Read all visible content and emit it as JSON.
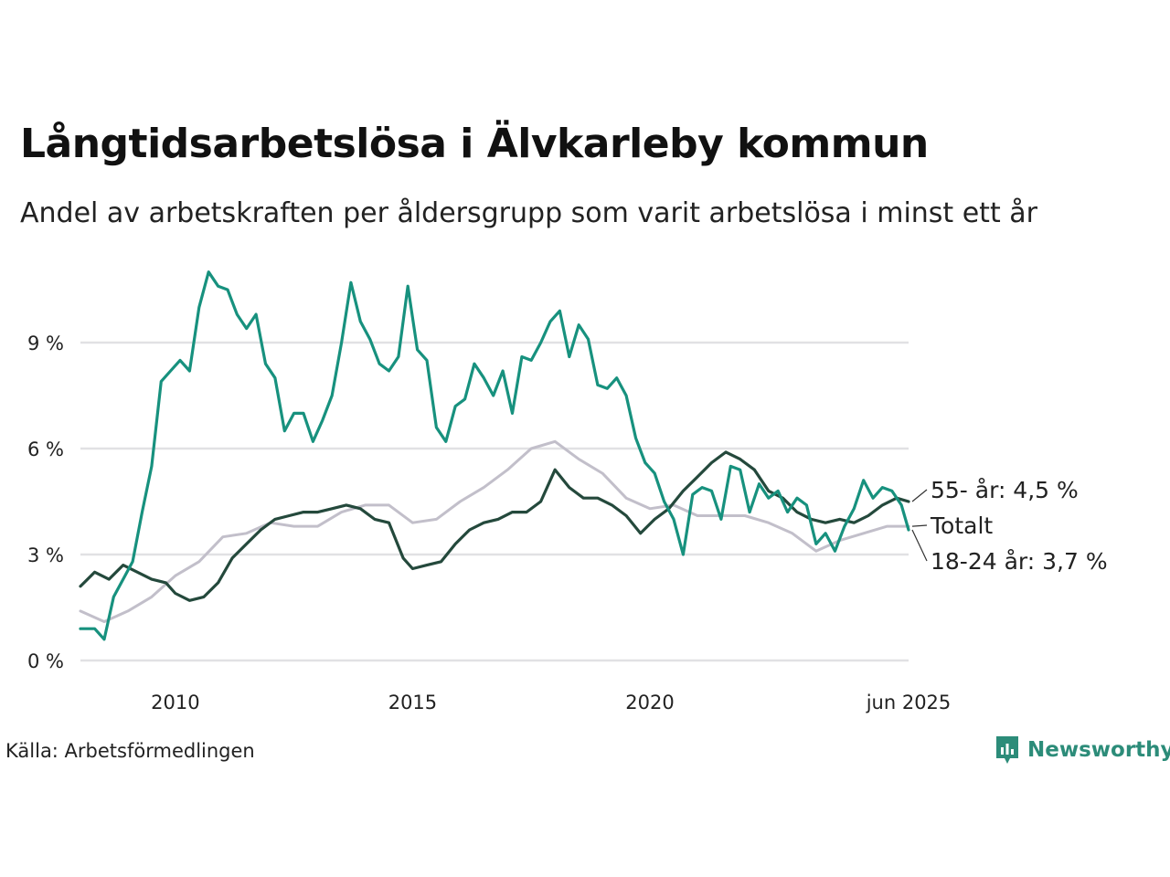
{
  "title": "Långtidsarbetslösa i Älvkarleby kommun",
  "subtitle": "Andel av arbetskraften per åldersgrupp som varit arbetslösa i minst ett år",
  "source": "Källa: Arbetsförmedlingen",
  "brand": "Newsworthy",
  "colors": {
    "youth": "#17917e",
    "senior": "#24493c",
    "total": "#c2bfca",
    "grid": "#e1e1e4",
    "text": "#222222",
    "brand": "#2c8c79"
  },
  "chart_data": {
    "type": "line",
    "x_ticks": [
      {
        "value": 2010,
        "label": "2010"
      },
      {
        "value": 2015,
        "label": "2015"
      },
      {
        "value": 2020,
        "label": "2020"
      },
      {
        "value": 2025.45,
        "label": "jun 2025"
      }
    ],
    "y_ticks": [
      {
        "value": 0,
        "label": "0 %"
      },
      {
        "value": 3,
        "label": "3 %"
      },
      {
        "value": 6,
        "label": "6 %"
      },
      {
        "value": 9,
        "label": "9 %"
      }
    ],
    "xlim": [
      2008,
      2025.45
    ],
    "ylim": [
      0,
      11.2
    ],
    "grid": true,
    "legend": "end-labels",
    "series": [
      {
        "key": "total",
        "color": "#c2bfca",
        "end_label": "Totalt",
        "points": [
          [
            2008.0,
            1.4
          ],
          [
            2008.5,
            1.1
          ],
          [
            2009.0,
            1.4
          ],
          [
            2009.5,
            1.8
          ],
          [
            2010.0,
            2.4
          ],
          [
            2010.5,
            2.8
          ],
          [
            2011.0,
            3.5
          ],
          [
            2011.5,
            3.6
          ],
          [
            2012.0,
            3.9
          ],
          [
            2012.5,
            3.8
          ],
          [
            2013.0,
            3.8
          ],
          [
            2013.5,
            4.2
          ],
          [
            2014.0,
            4.4
          ],
          [
            2014.5,
            4.4
          ],
          [
            2015.0,
            3.9
          ],
          [
            2015.5,
            4.0
          ],
          [
            2016.0,
            4.5
          ],
          [
            2016.5,
            4.9
          ],
          [
            2017.0,
            5.4
          ],
          [
            2017.5,
            6.0
          ],
          [
            2018.0,
            6.2
          ],
          [
            2018.5,
            5.7
          ],
          [
            2019.0,
            5.3
          ],
          [
            2019.5,
            4.6
          ],
          [
            2020.0,
            4.3
          ],
          [
            2020.5,
            4.4
          ],
          [
            2021.0,
            4.1
          ],
          [
            2021.5,
            4.1
          ],
          [
            2022.0,
            4.1
          ],
          [
            2022.5,
            3.9
          ],
          [
            2023.0,
            3.6
          ],
          [
            2023.5,
            3.1
          ],
          [
            2024.0,
            3.4
          ],
          [
            2024.5,
            3.6
          ],
          [
            2025.0,
            3.8
          ],
          [
            2025.45,
            3.8
          ]
        ]
      },
      {
        "key": "senior",
        "color": "#24493c",
        "end_label": "55- år: 4,5 %",
        "points": [
          [
            2008.0,
            2.1
          ],
          [
            2008.3,
            2.5
          ],
          [
            2008.6,
            2.3
          ],
          [
            2008.9,
            2.7
          ],
          [
            2009.2,
            2.5
          ],
          [
            2009.5,
            2.3
          ],
          [
            2009.8,
            2.2
          ],
          [
            2010.0,
            1.9
          ],
          [
            2010.3,
            1.7
          ],
          [
            2010.6,
            1.8
          ],
          [
            2010.9,
            2.2
          ],
          [
            2011.2,
            2.9
          ],
          [
            2011.5,
            3.3
          ],
          [
            2011.8,
            3.7
          ],
          [
            2012.1,
            4.0
          ],
          [
            2012.4,
            4.1
          ],
          [
            2012.7,
            4.2
          ],
          [
            2013.0,
            4.2
          ],
          [
            2013.3,
            4.3
          ],
          [
            2013.6,
            4.4
          ],
          [
            2013.9,
            4.3
          ],
          [
            2014.2,
            4.0
          ],
          [
            2014.5,
            3.9
          ],
          [
            2014.8,
            2.9
          ],
          [
            2015.0,
            2.6
          ],
          [
            2015.3,
            2.7
          ],
          [
            2015.6,
            2.8
          ],
          [
            2015.9,
            3.3
          ],
          [
            2016.2,
            3.7
          ],
          [
            2016.5,
            3.9
          ],
          [
            2016.8,
            4.0
          ],
          [
            2017.1,
            4.2
          ],
          [
            2017.4,
            4.2
          ],
          [
            2017.7,
            4.5
          ],
          [
            2018.0,
            5.4
          ],
          [
            2018.3,
            4.9
          ],
          [
            2018.6,
            4.6
          ],
          [
            2018.9,
            4.6
          ],
          [
            2019.2,
            4.4
          ],
          [
            2019.5,
            4.1
          ],
          [
            2019.8,
            3.6
          ],
          [
            2020.1,
            4.0
          ],
          [
            2020.4,
            4.3
          ],
          [
            2020.7,
            4.8
          ],
          [
            2021.0,
            5.2
          ],
          [
            2021.3,
            5.6
          ],
          [
            2021.6,
            5.9
          ],
          [
            2021.9,
            5.7
          ],
          [
            2022.2,
            5.4
          ],
          [
            2022.5,
            4.8
          ],
          [
            2022.8,
            4.6
          ],
          [
            2023.1,
            4.2
          ],
          [
            2023.4,
            4.0
          ],
          [
            2023.7,
            3.9
          ],
          [
            2024.0,
            4.0
          ],
          [
            2024.3,
            3.9
          ],
          [
            2024.6,
            4.1
          ],
          [
            2024.9,
            4.4
          ],
          [
            2025.2,
            4.6
          ],
          [
            2025.45,
            4.5
          ]
        ]
      },
      {
        "key": "youth",
        "color": "#17917e",
        "end_label": "18-24 år: 3,7 %",
        "points": [
          [
            2008.0,
            0.9
          ],
          [
            2008.3,
            0.9
          ],
          [
            2008.5,
            0.6
          ],
          [
            2008.7,
            1.8
          ],
          [
            2008.9,
            2.3
          ],
          [
            2009.1,
            2.8
          ],
          [
            2009.3,
            4.2
          ],
          [
            2009.5,
            5.5
          ],
          [
            2009.7,
            7.9
          ],
          [
            2009.9,
            8.2
          ],
          [
            2010.1,
            8.5
          ],
          [
            2010.3,
            8.2
          ],
          [
            2010.5,
            10.0
          ],
          [
            2010.7,
            11.0
          ],
          [
            2010.9,
            10.6
          ],
          [
            2011.1,
            10.5
          ],
          [
            2011.3,
            9.8
          ],
          [
            2011.5,
            9.4
          ],
          [
            2011.7,
            9.8
          ],
          [
            2011.9,
            8.4
          ],
          [
            2012.1,
            8.0
          ],
          [
            2012.3,
            6.5
          ],
          [
            2012.5,
            7.0
          ],
          [
            2012.7,
            7.0
          ],
          [
            2012.9,
            6.2
          ],
          [
            2013.1,
            6.8
          ],
          [
            2013.3,
            7.5
          ],
          [
            2013.5,
            9.0
          ],
          [
            2013.7,
            10.7
          ],
          [
            2013.9,
            9.6
          ],
          [
            2014.1,
            9.1
          ],
          [
            2014.3,
            8.4
          ],
          [
            2014.5,
            8.2
          ],
          [
            2014.7,
            8.6
          ],
          [
            2014.9,
            10.6
          ],
          [
            2015.1,
            8.8
          ],
          [
            2015.3,
            8.5
          ],
          [
            2015.5,
            6.6
          ],
          [
            2015.7,
            6.2
          ],
          [
            2015.9,
            7.2
          ],
          [
            2016.1,
            7.4
          ],
          [
            2016.3,
            8.4
          ],
          [
            2016.5,
            8.0
          ],
          [
            2016.7,
            7.5
          ],
          [
            2016.9,
            8.2
          ],
          [
            2017.1,
            7.0
          ],
          [
            2017.3,
            8.6
          ],
          [
            2017.5,
            8.5
          ],
          [
            2017.7,
            9.0
          ],
          [
            2017.9,
            9.6
          ],
          [
            2018.1,
            9.9
          ],
          [
            2018.3,
            8.6
          ],
          [
            2018.5,
            9.5
          ],
          [
            2018.7,
            9.1
          ],
          [
            2018.9,
            7.8
          ],
          [
            2019.1,
            7.7
          ],
          [
            2019.3,
            8.0
          ],
          [
            2019.5,
            7.5
          ],
          [
            2019.7,
            6.3
          ],
          [
            2019.9,
            5.6
          ],
          [
            2020.1,
            5.3
          ],
          [
            2020.3,
            4.5
          ],
          [
            2020.5,
            4.0
          ],
          [
            2020.7,
            3.0
          ],
          [
            2020.9,
            4.7
          ],
          [
            2021.1,
            4.9
          ],
          [
            2021.3,
            4.8
          ],
          [
            2021.5,
            4.0
          ],
          [
            2021.7,
            5.5
          ],
          [
            2021.9,
            5.4
          ],
          [
            2022.1,
            4.2
          ],
          [
            2022.3,
            5.0
          ],
          [
            2022.5,
            4.6
          ],
          [
            2022.7,
            4.8
          ],
          [
            2022.9,
            4.2
          ],
          [
            2023.1,
            4.6
          ],
          [
            2023.3,
            4.4
          ],
          [
            2023.5,
            3.3
          ],
          [
            2023.7,
            3.6
          ],
          [
            2023.9,
            3.1
          ],
          [
            2024.1,
            3.8
          ],
          [
            2024.3,
            4.3
          ],
          [
            2024.5,
            5.1
          ],
          [
            2024.7,
            4.6
          ],
          [
            2024.9,
            4.9
          ],
          [
            2025.1,
            4.8
          ],
          [
            2025.3,
            4.4
          ],
          [
            2025.45,
            3.7
          ]
        ]
      }
    ]
  }
}
